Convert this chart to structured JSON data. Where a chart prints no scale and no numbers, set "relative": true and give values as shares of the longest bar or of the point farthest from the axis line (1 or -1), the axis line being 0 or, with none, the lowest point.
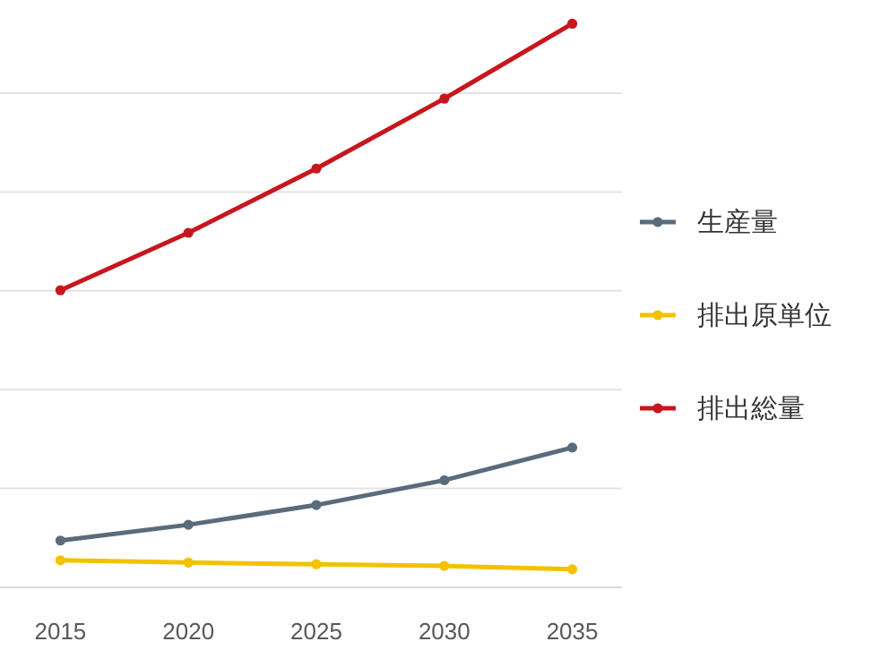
{
  "chart_data": {
    "type": "line",
    "relative": true,
    "categories": [
      "2015",
      "2020",
      "2025",
      "2030",
      "2035"
    ],
    "series": [
      {
        "name": "生産量",
        "color": "#5a6b7b",
        "values": [
          0.083,
          0.111,
          0.146,
          0.19,
          0.248
        ]
      },
      {
        "name": "排出原単位",
        "color": "#f2c200",
        "values": [
          0.048,
          0.044,
          0.041,
          0.038,
          0.032
        ]
      },
      {
        "name": "排出総量",
        "color": "#c8161e",
        "values": [
          0.527,
          0.629,
          0.743,
          0.867,
          1
        ]
      }
    ],
    "grid": "y",
    "legend": "right",
    "marker": "circle",
    "line_style": "solid"
  }
}
